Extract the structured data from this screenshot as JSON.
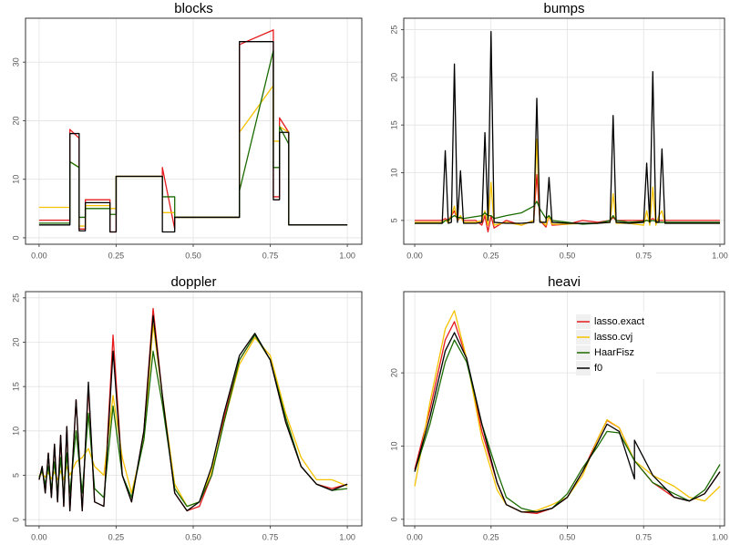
{
  "chart_data": [
    {
      "type": "line",
      "title": "blocks",
      "grid": true,
      "x": [
        0,
        0.1,
        0.1,
        0.13,
        0.13,
        0.15,
        0.15,
        0.23,
        0.23,
        0.25,
        0.25,
        0.4,
        0.4,
        0.44,
        0.44,
        0.65,
        0.65,
        0.76,
        0.76,
        0.78,
        0.78,
        0.81,
        0.81,
        1
      ],
      "xlim": [
        -0.044,
        1.047
      ],
      "xticks": [
        {
          "value": 0,
          "label": "0.00"
        },
        {
          "value": 0.25,
          "label": "0.25"
        },
        {
          "value": 0.5,
          "label": "0.50"
        },
        {
          "value": 0.75,
          "label": "0.75"
        },
        {
          "value": 1,
          "label": "1.00"
        }
      ],
      "ylim": [
        -1.1,
        37.5
      ],
      "yticks": [
        0,
        10,
        20,
        30
      ],
      "series": [
        {
          "name": "lasso.exact",
          "color": "#e41a1c",
          "values": [
            3,
            3,
            18.5,
            17,
            1.5,
            1.5,
            6.5,
            6.5,
            1,
            1,
            10.5,
            10.5,
            12,
            1.5,
            3.5,
            3.5,
            33,
            35.5,
            7,
            7,
            20.5,
            18,
            2.2,
            2.2
          ]
        },
        {
          "name": "lasso.cvj",
          "color": "#f5c200",
          "values": [
            5.2,
            5.2,
            13,
            12,
            2,
            2,
            5.5,
            5.5,
            5,
            5,
            10.5,
            10.5,
            4.3,
            4.3,
            3.5,
            3.5,
            18,
            26,
            16.5,
            16.5,
            19,
            18,
            2.2,
            2.2
          ]
        },
        {
          "name": "HaarFisz",
          "color": "#1a6b00",
          "values": [
            2.5,
            2.5,
            13,
            12,
            3.5,
            3.5,
            5,
            5,
            4,
            4,
            10.5,
            10.5,
            7,
            7,
            3.5,
            3.5,
            8,
            32,
            12,
            12,
            19,
            16,
            2.2,
            2.2
          ]
        },
        {
          "name": "f0",
          "color": "#000000",
          "values": [
            2.2,
            2.2,
            17.8,
            17.8,
            1.2,
            1.2,
            6,
            6,
            1,
            1,
            10.5,
            10.5,
            1,
            1,
            3.5,
            3.5,
            33.5,
            33.5,
            6.5,
            6.5,
            18,
            18,
            2.2,
            2.2
          ]
        }
      ]
    },
    {
      "type": "line",
      "title": "bumps",
      "grid": true,
      "x": [
        0,
        0.09,
        0.1,
        0.11,
        0.12,
        0.13,
        0.14,
        0.15,
        0.16,
        0.2,
        0.22,
        0.23,
        0.24,
        0.25,
        0.26,
        0.3,
        0.35,
        0.39,
        0.4,
        0.41,
        0.43,
        0.44,
        0.45,
        0.5,
        0.55,
        0.6,
        0.64,
        0.65,
        0.66,
        0.7,
        0.75,
        0.76,
        0.77,
        0.78,
        0.79,
        0.8,
        0.81,
        0.82,
        0.9,
        1
      ],
      "xlim": [
        -0.036,
        1.015
      ],
      "xticks": [
        {
          "value": 0,
          "label": "0.00"
        },
        {
          "value": 0.25,
          "label": "0.25"
        },
        {
          "value": 0.5,
          "label": "0.50"
        },
        {
          "value": 0.75,
          "label": "0.75"
        },
        {
          "value": 1,
          "label": "1.00"
        }
      ],
      "ylim": [
        2.5,
        26.2
      ],
      "yticks": [
        5,
        10,
        15,
        20,
        25
      ],
      "series": [
        {
          "name": "lasso.exact",
          "color": "#e41a1c",
          "values": [
            5,
            5,
            5.2,
            5,
            5.5,
            6,
            5,
            5.3,
            5,
            5,
            4.5,
            5.5,
            3.8,
            5.5,
            4.2,
            5,
            4.5,
            5,
            9.8,
            5,
            4.3,
            5.5,
            4.5,
            4.6,
            5,
            4.8,
            5,
            5.3,
            5,
            5,
            5,
            5,
            5,
            5.2,
            5,
            5,
            5,
            5,
            5,
            5
          ]
        },
        {
          "name": "lasso.cvj",
          "color": "#f5c200",
          "values": [
            4.8,
            4.8,
            5,
            4.8,
            5.5,
            6.5,
            5,
            5.5,
            4.8,
            4.8,
            5,
            6,
            4.5,
            9,
            4.5,
            4.8,
            4.5,
            5,
            13.5,
            5,
            4.5,
            5.5,
            4.6,
            4.6,
            4.7,
            4.7,
            4.8,
            7.8,
            4.7,
            4.7,
            4.5,
            6,
            4.5,
            8.5,
            4.5,
            5.5,
            6,
            4.7,
            4.7,
            4.7
          ]
        },
        {
          "name": "HaarFisz",
          "color": "#1a6b00",
          "values": [
            4.7,
            4.7,
            5,
            5,
            5.3,
            5.5,
            5.3,
            5.3,
            5.2,
            5.4,
            5.5,
            5.8,
            5.5,
            5.5,
            5.2,
            5.5,
            5.8,
            6.5,
            7,
            6.2,
            5.2,
            5.5,
            5,
            4.8,
            4.6,
            4.7,
            5,
            5.5,
            5,
            4.8,
            4.9,
            5,
            4.9,
            5,
            4.9,
            4.8,
            4.8,
            4.8,
            4.8,
            4.8
          ]
        },
        {
          "name": "f0",
          "color": "#000000",
          "values": [
            4.7,
            4.7,
            12.3,
            4.7,
            4.8,
            21.4,
            4.8,
            10.2,
            4.7,
            4.7,
            4.8,
            14.2,
            5,
            24.8,
            4.8,
            4.7,
            4.7,
            4.8,
            17.8,
            4.8,
            4.8,
            9.5,
            4.8,
            4.7,
            4.7,
            4.7,
            4.8,
            16,
            4.8,
            4.7,
            4.8,
            11,
            4.8,
            20.6,
            4.8,
            4.8,
            12.5,
            4.7,
            4.7,
            4.7
          ]
        }
      ]
    },
    {
      "type": "line",
      "title": "doppler",
      "grid": true,
      "x": [
        0,
        0.01,
        0.02,
        0.03,
        0.04,
        0.05,
        0.06,
        0.07,
        0.08,
        0.09,
        0.1,
        0.12,
        0.14,
        0.16,
        0.18,
        0.21,
        0.24,
        0.27,
        0.3,
        0.34,
        0.37,
        0.4,
        0.44,
        0.48,
        0.52,
        0.56,
        0.6,
        0.65,
        0.7,
        0.75,
        0.8,
        0.85,
        0.9,
        0.95,
        1
      ],
      "xlim": [
        -0.044,
        1.047
      ],
      "xticks": [
        {
          "value": 0,
          "label": "0.00"
        },
        {
          "value": 0.25,
          "label": "0.25"
        },
        {
          "value": 0.5,
          "label": "0.50"
        },
        {
          "value": 0.75,
          "label": "0.75"
        },
        {
          "value": 1,
          "label": "1.00"
        }
      ],
      "ylim": [
        -0.7,
        25.7
      ],
      "yticks": [
        0,
        5,
        10,
        15,
        20,
        25
      ],
      "series": [
        {
          "name": "lasso.exact",
          "color": "#e41a1c",
          "values": [
            4.5,
            6,
            3,
            7.5,
            2.5,
            8.5,
            2,
            9.5,
            1.5,
            10.5,
            1,
            13.5,
            1,
            15,
            2,
            1.5,
            20.8,
            5,
            2,
            10,
            23.8,
            14,
            3,
            1,
            1.5,
            5,
            11.5,
            18,
            20.8,
            18,
            11,
            6,
            4,
            3.5,
            4
          ]
        },
        {
          "name": "lasso.cvj",
          "color": "#f5c200",
          "values": [
            5,
            5.2,
            4.8,
            5.3,
            4.6,
            5.4,
            4.5,
            5.5,
            4.5,
            6,
            5,
            6.5,
            7,
            8,
            6,
            5,
            14,
            7,
            3,
            9,
            22,
            14,
            4,
            1.5,
            2,
            5.5,
            11,
            17.5,
            20.5,
            18.5,
            12,
            7,
            4.5,
            4.5,
            3.8
          ]
        },
        {
          "name": "HaarFisz",
          "color": "#1a6b00",
          "values": [
            4.8,
            5.5,
            4,
            6,
            3.5,
            6.5,
            3,
            7,
            2.5,
            7.5,
            3,
            10,
            3,
            12,
            3.5,
            2.5,
            12.8,
            5,
            2.5,
            9,
            19,
            13,
            3.5,
            1.5,
            2,
            5,
            11,
            18,
            20.8,
            18,
            11.5,
            6,
            4,
            3.3,
            3.5
          ]
        },
        {
          "name": "f0",
          "color": "#000000",
          "values": [
            4.5,
            6,
            3,
            7.5,
            2.5,
            8.5,
            2,
            9.5,
            1.5,
            10.5,
            1,
            13.5,
            1,
            15.5,
            2,
            1.5,
            19,
            5,
            2,
            10,
            23,
            14,
            3,
            1,
            2,
            6,
            12,
            18.5,
            21,
            18,
            11,
            6,
            4,
            3.3,
            4
          ]
        }
      ]
    },
    {
      "type": "line",
      "title": "heavi",
      "grid": true,
      "legend": "top-right",
      "x": [
        0,
        0.05,
        0.1,
        0.13,
        0.17,
        0.22,
        0.27,
        0.3,
        0.35,
        0.4,
        0.45,
        0.5,
        0.55,
        0.6,
        0.63,
        0.67,
        0.72,
        0.72,
        0.78,
        0.85,
        0.9,
        0.95,
        1
      ],
      "xlim": [
        -0.036,
        1.015
      ],
      "xticks": [
        {
          "value": 0,
          "label": "0.00"
        },
        {
          "value": 0.25,
          "label": "0.25"
        },
        {
          "value": 0.5,
          "label": "0.50"
        },
        {
          "value": 0.75,
          "label": "0.75"
        },
        {
          "value": 1,
          "label": "1.00"
        }
      ],
      "ylim": [
        -0.9,
        31.1
      ],
      "yticks": [
        0,
        10,
        20
      ],
      "series": [
        {
          "name": "lasso.exact",
          "color": "#e41a1c",
          "values": [
            6.8,
            15,
            24.5,
            27,
            22,
            12,
            5,
            2,
            1,
            0.8,
            1.5,
            3,
            6.5,
            11,
            13.5,
            12.5,
            8,
            8,
            5,
            3,
            2.5,
            3.5,
            6.5
          ]
        },
        {
          "name": "lasso.cvj",
          "color": "#f5c200",
          "values": [
            4.5,
            16,
            26,
            28.5,
            22,
            11,
            4,
            2,
            1,
            1.2,
            2,
            3,
            6,
            11,
            13.6,
            12.5,
            8,
            8,
            6,
            4.5,
            3,
            2.5,
            4.5
          ]
        },
        {
          "name": "HaarFisz",
          "color": "#1a6b00",
          "values": [
            6.5,
            13,
            21.5,
            24.5,
            21.5,
            13,
            6.5,
            3,
            1.5,
            1,
            1.5,
            3.5,
            7,
            10,
            12,
            11.8,
            8,
            8,
            5,
            3.5,
            2.5,
            4,
            7.5
          ]
        },
        {
          "name": "f0",
          "color": "#000000",
          "values": [
            6.5,
            14,
            23,
            25.5,
            22,
            13,
            5,
            2,
            1,
            1,
            1.5,
            3,
            6.5,
            10.5,
            13,
            12,
            5.5,
            10.8,
            6,
            3,
            2.5,
            3.5,
            6.5
          ]
        }
      ]
    }
  ]
}
